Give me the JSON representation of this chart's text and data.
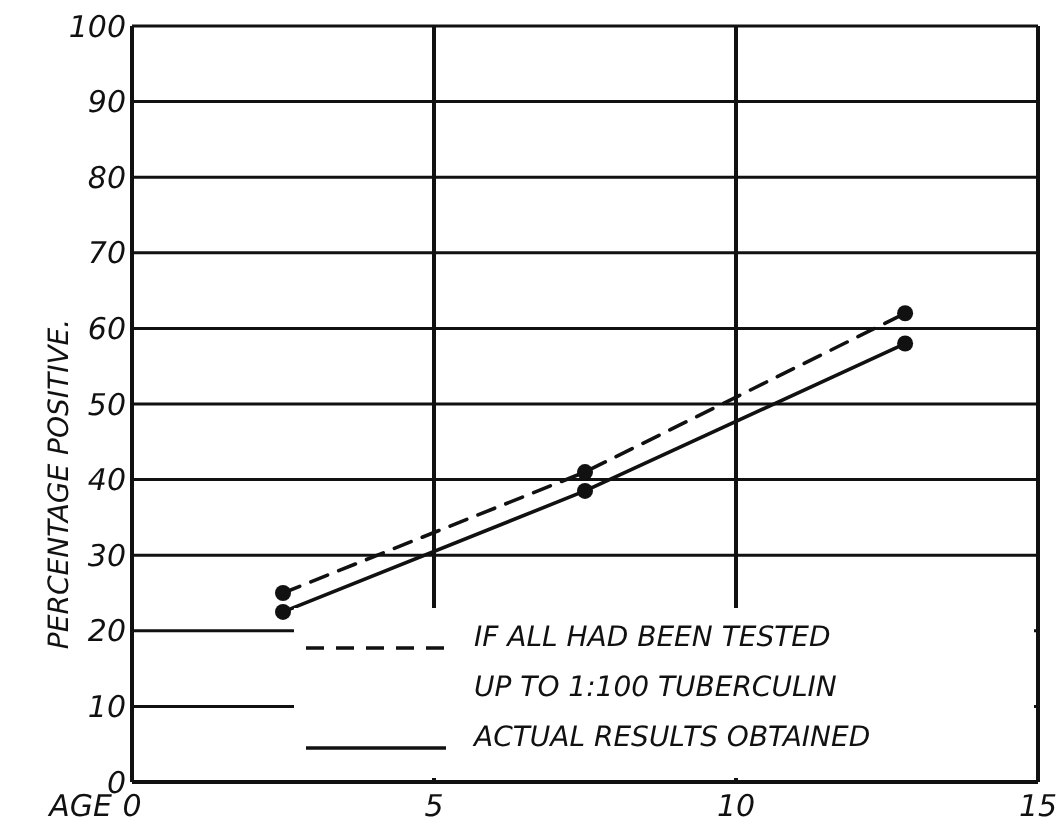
{
  "chart_data": {
    "type": "line",
    "xlabel": "AGE",
    "ylabel": "PERCENTAGE POSITIVE.",
    "xlim": [
      0,
      15
    ],
    "xticks": [
      0,
      5,
      10,
      15
    ],
    "ylim": [
      0,
      100
    ],
    "yticks": [
      0,
      10,
      20,
      30,
      40,
      50,
      60,
      70,
      80,
      90,
      100
    ],
    "grid": true,
    "legend": "bottom right",
    "marker": "circle",
    "series": [
      {
        "name": "IF ALL HAD BEEN TESTED UP TO 1:100 TUBERCULIN",
        "color": "#111111",
        "line_style": "dashed",
        "x": [
          2.5,
          7.5,
          12.8
        ],
        "values": [
          25,
          41,
          62
        ]
      },
      {
        "name": "ACTUAL RESULTS OBTAINED",
        "color": "#111111",
        "line_style": "solid",
        "x": [
          2.5,
          7.5,
          12.8
        ],
        "values": [
          22.5,
          38.5,
          58
        ]
      }
    ]
  }
}
